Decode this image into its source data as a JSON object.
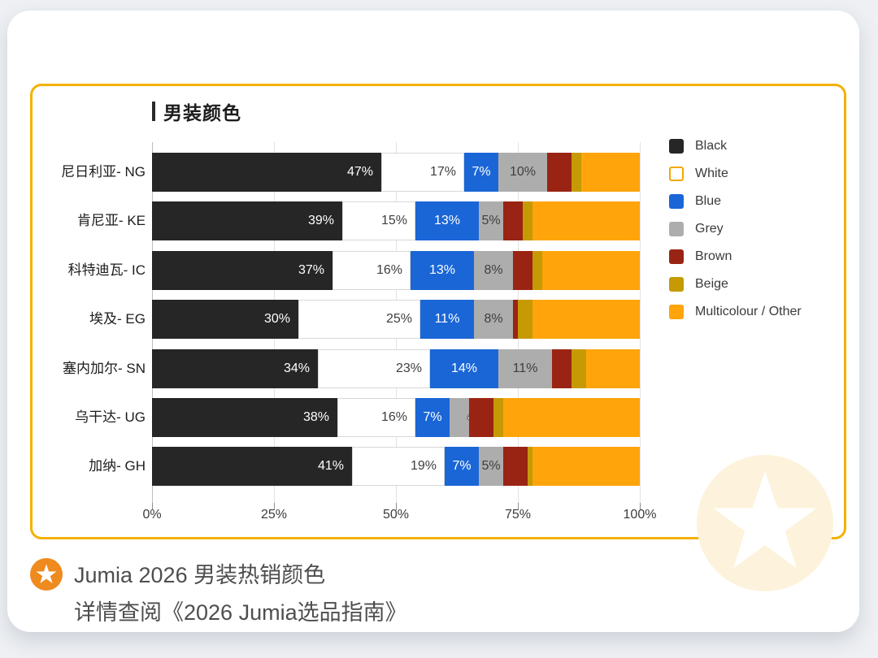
{
  "card": {
    "title": "男装颜色"
  },
  "chart_data": {
    "type": "bar",
    "orientation": "horizontal",
    "stacked": true,
    "title": "男装颜色",
    "xlim": [
      0,
      100
    ],
    "x_tick_values": [
      0,
      25,
      50,
      75,
      100
    ],
    "x_tick_labels": [
      "0%",
      "25%",
      "50%",
      "75%",
      "100%"
    ],
    "grid": "vertical",
    "legend_position": "right",
    "categories": [
      "尼日利亚- NG",
      "肯尼亚- KE",
      "科特迪瓦- IC",
      "埃及- EG",
      "塞内加尔- SN",
      "乌干达- UG",
      "加纳- GH"
    ],
    "series": [
      {
        "name": "Black",
        "color": "#262626",
        "values": [
          47,
          39,
          37,
          30,
          34,
          38,
          41
        ]
      },
      {
        "name": "White",
        "color": "#FFFFFF",
        "values": [
          17,
          15,
          16,
          25,
          23,
          16,
          19
        ]
      },
      {
        "name": "Blue",
        "color": "#1A66D6",
        "values": [
          7,
          13,
          13,
          11,
          14,
          7,
          7
        ]
      },
      {
        "name": "Grey",
        "color": "#ADADAD",
        "values": [
          10,
          5,
          8,
          8,
          11,
          4,
          5
        ]
      },
      {
        "name": "Brown",
        "color": "#9A2413",
        "values": [
          5,
          4,
          4,
          1,
          4,
          5,
          5
        ]
      },
      {
        "name": "Beige",
        "color": "#C59A04",
        "values": [
          2,
          2,
          2,
          3,
          3,
          2,
          1
        ]
      },
      {
        "name": "Multicolour / Other",
        "color": "#FFA40B",
        "values": [
          12,
          22,
          20,
          22,
          11,
          28,
          22
        ]
      }
    ],
    "labeled_series": [
      0,
      1,
      2,
      3
    ],
    "label_styles": [
      "light right",
      "dark right",
      "light center",
      "dark center"
    ],
    "label_overrides": [
      {
        "row": 5,
        "series": 3,
        "style": "outline-shift"
      }
    ]
  },
  "legend": {
    "items": [
      {
        "label": "Black",
        "color": "#262626",
        "border": ""
      },
      {
        "label": "White",
        "color": "#FFFFFF",
        "border": "#F5A800"
      },
      {
        "label": "Blue",
        "color": "#1A66D6",
        "border": ""
      },
      {
        "label": "Grey",
        "color": "#ADADAD",
        "border": ""
      },
      {
        "label": "Brown",
        "color": "#9A2413",
        "border": ""
      },
      {
        "label": "Beige",
        "color": "#C59A04",
        "border": ""
      },
      {
        "label": "Multicolour / Other",
        "color": "#FFA40B",
        "border": ""
      }
    ]
  },
  "watermark": {
    "icon": "star-icon"
  },
  "footer": {
    "badge_icon": "star-icon",
    "line1": "Jumia 2026 男装热销颜色",
    "line2": "详情查阅《2026 Jumia选品指南》"
  },
  "colors": {
    "card_border": "#F4B100",
    "badge_orange": "#EE8A1E",
    "watermark_cream": "#FDF3DC",
    "page_background": "#eef0f3"
  }
}
